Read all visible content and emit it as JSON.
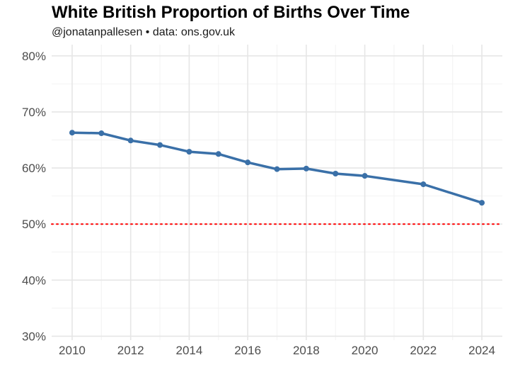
{
  "title": "White British Proportion of Births Over Time",
  "subtitle": "@jonatanpallesen • data: ons.gov.uk",
  "colors": {
    "line": "#3a70a8",
    "reference_line": "#ff0000",
    "grid": "#e6e6e6",
    "tick_text": "#4d4d4d"
  },
  "chart_data": {
    "type": "line",
    "title": "White British Proportion of Births Over Time",
    "subtitle": "@jonatanpallesen • data: ons.gov.uk",
    "xlabel": "",
    "ylabel": "",
    "xlim": [
      2009.3,
      2024.7
    ],
    "ylim": [
      29.3,
      82
    ],
    "x_ticks": [
      2010,
      2012,
      2014,
      2016,
      2018,
      2020,
      2022,
      2024
    ],
    "x_tick_labels": [
      "2010",
      "2012",
      "2014",
      "2016",
      "2018",
      "2020",
      "2022",
      "2024"
    ],
    "y_ticks": [
      30,
      40,
      50,
      60,
      70,
      80
    ],
    "y_tick_labels": [
      "30%",
      "40%",
      "50%",
      "60%",
      "70%",
      "80%"
    ],
    "grid": true,
    "legend": "none",
    "reference_line": {
      "y": 50,
      "style": "dotted"
    },
    "series": [
      {
        "x": [
          2010,
          2011,
          2012,
          2013,
          2014,
          2015,
          2016,
          2017,
          2018,
          2019,
          2020,
          2022,
          2024
        ],
        "y": [
          66.3,
          66.2,
          64.9,
          64.1,
          62.9,
          62.5,
          61.0,
          59.8,
          59.9,
          59.0,
          58.6,
          57.1,
          53.8
        ]
      }
    ]
  }
}
